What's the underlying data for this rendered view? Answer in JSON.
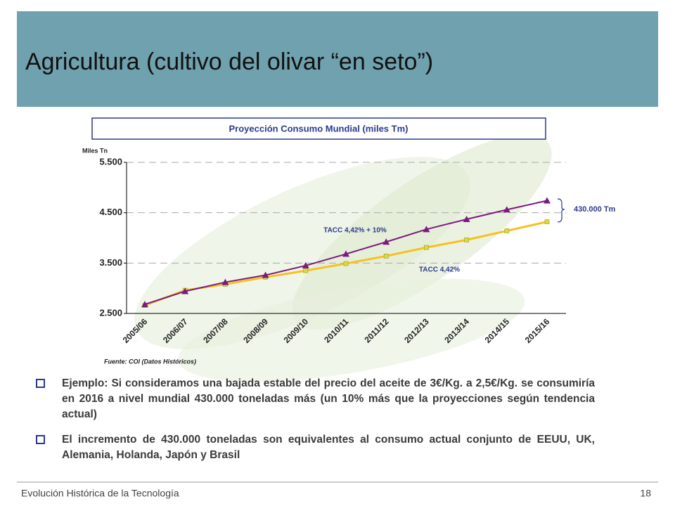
{
  "slide": {
    "title": "Agricultura (cultivo del olivar “en seto”)",
    "bullets": [
      "Ejemplo: Si consideramos una bajada estable del precio del aceite de 3€/Kg. a 2,5€/Kg. se consumiría en 2016 a nivel mundial 430.000 toneladas más (un 10% más que la proyecciones según tendencia actual)",
      "El incremento de 430.000 toneladas son equivalentes al consumo actual conjunto de EEUU, UK, Alemania, Holanda, Japón y Brasil"
    ],
    "footer": "Evolución Histórica de la Tecnología",
    "page_number": "18"
  },
  "chart_data": {
    "type": "line",
    "title": "Proyección Consumo Mundial (miles Tm)",
    "y_label": "Miles Tn",
    "categories": [
      "2005/06",
      "2006/07",
      "2007/08",
      "2008/09",
      "2009/10",
      "2010/11",
      "2011/12",
      "2012/13",
      "2013/14",
      "2014/15",
      "2015/16"
    ],
    "series": [
      {
        "name": "TACC 4,42% + 10%",
        "color": "#7b1b7e",
        "marker": "triangle",
        "values": [
          2680,
          2940,
          3120,
          3260,
          3450,
          3680,
          3920,
          4170,
          4370,
          4560,
          4740
        ]
      },
      {
        "name": "TACC 4,42%",
        "color": "#f7c11e",
        "marker": "square",
        "values": [
          2660,
          2960,
          3080,
          3220,
          3350,
          3490,
          3640,
          3810,
          3960,
          4140,
          4320
        ]
      }
    ],
    "ylim": [
      2500,
      5500
    ],
    "yticks": [
      {
        "value": 2500,
        "label": "2.500"
      },
      {
        "value": 3500,
        "label": "3.500"
      },
      {
        "value": 4500,
        "label": "4.500"
      },
      {
        "value": 5500,
        "label": "5.500"
      }
    ],
    "grid": true,
    "annotation": "430.000 Tm",
    "source": "Fuente: COI (Datos Históricos)"
  }
}
